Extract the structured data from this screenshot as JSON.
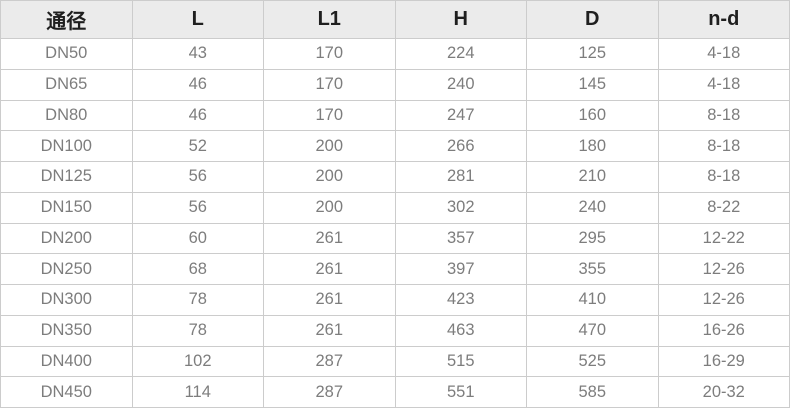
{
  "theme": {
    "header_bg": "#ebebeb",
    "header_text": "#1f1f1f",
    "body_text": "#7d7d7d",
    "border_color": "#cccccc",
    "row_bg": "#ffffff",
    "page_bg": "#ffffff"
  },
  "table": {
    "columns": [
      "通径",
      "L",
      "L1",
      "H",
      "D",
      "n-d"
    ],
    "rows": [
      [
        "DN50",
        "43",
        "170",
        "224",
        "125",
        "4-18"
      ],
      [
        "DN65",
        "46",
        "170",
        "240",
        "145",
        "4-18"
      ],
      [
        "DN80",
        "46",
        "170",
        "247",
        "160",
        "8-18"
      ],
      [
        "DN100",
        "52",
        "200",
        "266",
        "180",
        "8-18"
      ],
      [
        "DN125",
        "56",
        "200",
        "281",
        "210",
        "8-18"
      ],
      [
        "DN150",
        "56",
        "200",
        "302",
        "240",
        "8-22"
      ],
      [
        "DN200",
        "60",
        "261",
        "357",
        "295",
        "12-22"
      ],
      [
        "DN250",
        "68",
        "261",
        "397",
        "355",
        "12-26"
      ],
      [
        "DN300",
        "78",
        "261",
        "423",
        "410",
        "12-26"
      ],
      [
        "DN350",
        "78",
        "261",
        "463",
        "470",
        "16-26"
      ],
      [
        "DN400",
        "102",
        "287",
        "515",
        "525",
        "16-29"
      ],
      [
        "DN450",
        "114",
        "287",
        "551",
        "585",
        "20-32"
      ]
    ]
  },
  "chart_data": {
    "type": "table",
    "title": "",
    "columns": [
      "通径",
      "L",
      "L1",
      "H",
      "D",
      "n-d"
    ],
    "categories": [
      "DN50",
      "DN65",
      "DN80",
      "DN100",
      "DN125",
      "DN150",
      "DN200",
      "DN250",
      "DN300",
      "DN350",
      "DN400",
      "DN450"
    ],
    "series": [
      {
        "name": "L",
        "values": [
          43,
          46,
          46,
          52,
          56,
          56,
          60,
          68,
          78,
          78,
          102,
          114
        ]
      },
      {
        "name": "L1",
        "values": [
          170,
          170,
          170,
          200,
          200,
          200,
          261,
          261,
          261,
          261,
          287,
          287
        ]
      },
      {
        "name": "H",
        "values": [
          224,
          240,
          247,
          266,
          281,
          302,
          357,
          397,
          423,
          463,
          515,
          551
        ]
      },
      {
        "name": "D",
        "values": [
          125,
          145,
          160,
          180,
          210,
          240,
          295,
          355,
          410,
          470,
          525,
          585
        ]
      },
      {
        "name": "n-d",
        "values": [
          "4-18",
          "4-18",
          "8-18",
          "8-18",
          "8-18",
          "8-22",
          "12-22",
          "12-26",
          "12-26",
          "16-26",
          "16-29",
          "20-32"
        ]
      }
    ]
  }
}
